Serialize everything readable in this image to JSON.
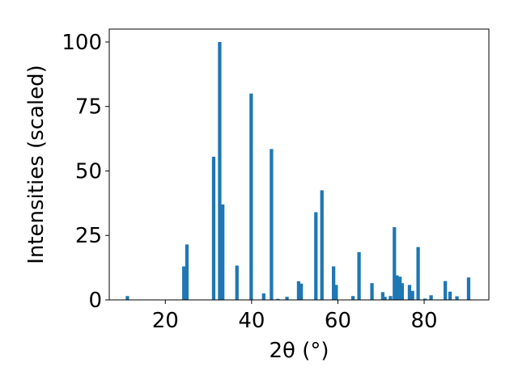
{
  "chart_data": {
    "type": "bar",
    "title": "",
    "xlabel": "2θ (°)",
    "ylabel": "Intensities (scaled)",
    "xlim": [
      7,
      95
    ],
    "ylim": [
      0,
      105
    ],
    "xticks": [
      20,
      40,
      60,
      80
    ],
    "yticks": [
      0,
      25,
      50,
      75,
      100
    ],
    "grid": false,
    "bar_color": "#1f77b4",
    "bar_width": 0.8,
    "x": [
      11.2,
      24.3,
      25.0,
      31.2,
      32.6,
      33.3,
      36.6,
      39.9,
      42.8,
      44.6,
      46.1,
      48.2,
      50.9,
      51.5,
      54.9,
      56.3,
      59.0,
      59.6,
      63.5,
      64.9,
      67.9,
      70.4,
      70.9,
      72.2,
      73.1,
      73.7,
      74.4,
      74.9,
      76.6,
      77.3,
      78.6,
      80.2,
      81.6,
      84.9,
      86.0,
      87.6,
      90.3
    ],
    "values": [
      1.5,
      13,
      21.5,
      55.5,
      100,
      37,
      13.3,
      80,
      2.5,
      58.5,
      0.4,
      1.2,
      7.2,
      6.3,
      34,
      42.5,
      13,
      5.8,
      1.5,
      18.5,
      6.5,
      3,
      1.2,
      1.5,
      28.2,
      9.5,
      9,
      6.5,
      5.8,
      3.5,
      20.5,
      0.5,
      1.8,
      7.3,
      3.2,
      1.4,
      8.7
    ]
  }
}
